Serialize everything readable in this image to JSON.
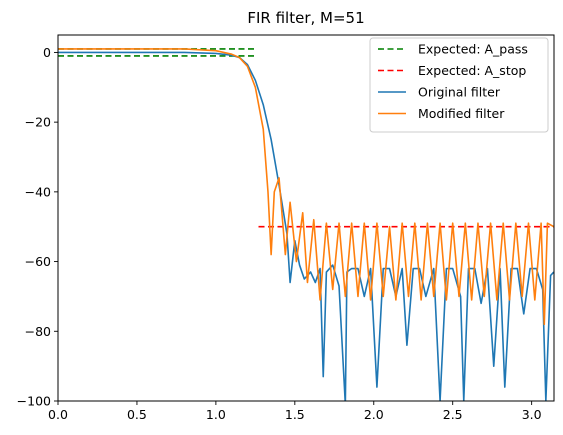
{
  "chart_data": {
    "type": "line",
    "title": "FIR filter, M=51",
    "xlabel": "",
    "ylabel": "",
    "xlim": [
      0,
      3.1416
    ],
    "ylim": [
      -100,
      5
    ],
    "x_ticks": [
      0.0,
      0.5,
      1.0,
      1.5,
      2.0,
      2.5,
      3.0
    ],
    "x_tick_labels": [
      "0.0",
      "0.5",
      "1.0",
      "1.5",
      "2.0",
      "2.5",
      "3.0"
    ],
    "y_ticks": [
      0,
      -20,
      -40,
      -60,
      -80,
      -100
    ],
    "y_tick_labels": [
      "0",
      "−20",
      "−40",
      "−60",
      "−80",
      "−100"
    ],
    "grid": false,
    "legend_position": "top-right",
    "series": [
      {
        "name": "Expected: A_pass",
        "style": "dashed",
        "color": "#008000",
        "segments": [
          {
            "x": [
              0.0,
              1.25
            ],
            "y": [
              1.0,
              1.0
            ]
          },
          {
            "x": [
              0.0,
              1.25
            ],
            "y": [
              -1.0,
              -1.0
            ]
          }
        ]
      },
      {
        "name": "Expected: A_stop",
        "style": "dashed",
        "color": "#ff0000",
        "segments": [
          {
            "x": [
              1.27,
              3.1416
            ],
            "y": [
              -50.0,
              -50.0
            ]
          }
        ]
      },
      {
        "name": "Original  filter",
        "style": "solid",
        "color": "#1f77b4",
        "x": [
          0.0,
          0.2,
          0.4,
          0.6,
          0.8,
          1.0,
          1.1,
          1.15,
          1.2,
          1.25,
          1.3,
          1.35,
          1.4,
          1.45,
          1.47,
          1.5,
          1.53,
          1.56,
          1.6,
          1.63,
          1.66,
          1.68,
          1.7,
          1.74,
          1.78,
          1.82,
          1.83,
          1.86,
          1.9,
          1.94,
          1.98,
          2.02,
          2.06,
          2.1,
          2.14,
          2.18,
          2.21,
          2.25,
          2.29,
          2.33,
          2.38,
          2.42,
          2.46,
          2.5,
          2.55,
          2.57,
          2.6,
          2.64,
          2.68,
          2.72,
          2.76,
          2.8,
          2.83,
          2.87,
          2.91,
          2.95,
          2.99,
          3.03,
          3.07,
          3.09,
          3.12,
          3.14
        ],
        "y": [
          0.0,
          0.0,
          0.0,
          0.0,
          0.0,
          -0.3,
          -0.8,
          -1.5,
          -3.5,
          -8.0,
          -15.0,
          -25.0,
          -38.0,
          -52.0,
          -66.0,
          -54.0,
          -61.0,
          -65.0,
          -63.0,
          -66.0,
          -62.0,
          -93.0,
          -63.0,
          -61.0,
          -67.0,
          -101.0,
          -63.0,
          -62.0,
          -62.0,
          -70.0,
          -62.0,
          -96.0,
          -62.0,
          -62.0,
          -70.0,
          -62.0,
          -84.0,
          -62.0,
          -62.0,
          -70.0,
          -62.0,
          -100.0,
          -62.0,
          -62.0,
          -70.0,
          -100.0,
          -62.0,
          -62.0,
          -72.0,
          -62.0,
          -90.0,
          -62.0,
          -96.0,
          -62.0,
          -62.0,
          -75.0,
          -62.0,
          -62.0,
          -68.0,
          -100.0,
          -64.0,
          -63.0
        ]
      },
      {
        "name": "Modified filter",
        "style": "solid",
        "color": "#ff7f0e",
        "x": [
          0.0,
          0.2,
          0.4,
          0.6,
          0.8,
          1.0,
          1.1,
          1.15,
          1.2,
          1.25,
          1.3,
          1.33,
          1.35,
          1.37,
          1.4,
          1.44,
          1.47,
          1.51,
          1.55,
          1.58,
          1.62,
          1.66,
          1.7,
          1.74,
          1.78,
          1.82,
          1.86,
          1.9,
          1.94,
          1.98,
          2.02,
          2.06,
          2.1,
          2.14,
          2.18,
          2.22,
          2.26,
          2.3,
          2.34,
          2.38,
          2.42,
          2.46,
          2.5,
          2.54,
          2.58,
          2.62,
          2.66,
          2.7,
          2.74,
          2.78,
          2.82,
          2.86,
          2.9,
          2.94,
          2.98,
          3.02,
          3.06,
          3.08,
          3.1,
          3.14
        ],
        "y": [
          1.0,
          1.0,
          1.0,
          1.0,
          1.0,
          0.5,
          -0.5,
          -1.5,
          -4.0,
          -10.0,
          -22.0,
          -40.0,
          -58.0,
          -40.0,
          -36.0,
          -58.0,
          -43.0,
          -60.0,
          -46.0,
          -66.0,
          -48.0,
          -71.0,
          -49.0,
          -68.0,
          -49.0,
          -70.0,
          -49.0,
          -70.0,
          -49.0,
          -71.0,
          -49.0,
          -70.0,
          -50.0,
          -71.0,
          -49.0,
          -70.0,
          -49.0,
          -71.0,
          -49.0,
          -70.0,
          -49.0,
          -71.0,
          -49.0,
          -70.0,
          -49.0,
          -71.0,
          -49.0,
          -70.0,
          -49.0,
          -71.0,
          -49.0,
          -71.0,
          -49.0,
          -70.0,
          -49.0,
          -71.0,
          -49.0,
          -78.0,
          -49.0,
          -50.0
        ]
      }
    ]
  }
}
